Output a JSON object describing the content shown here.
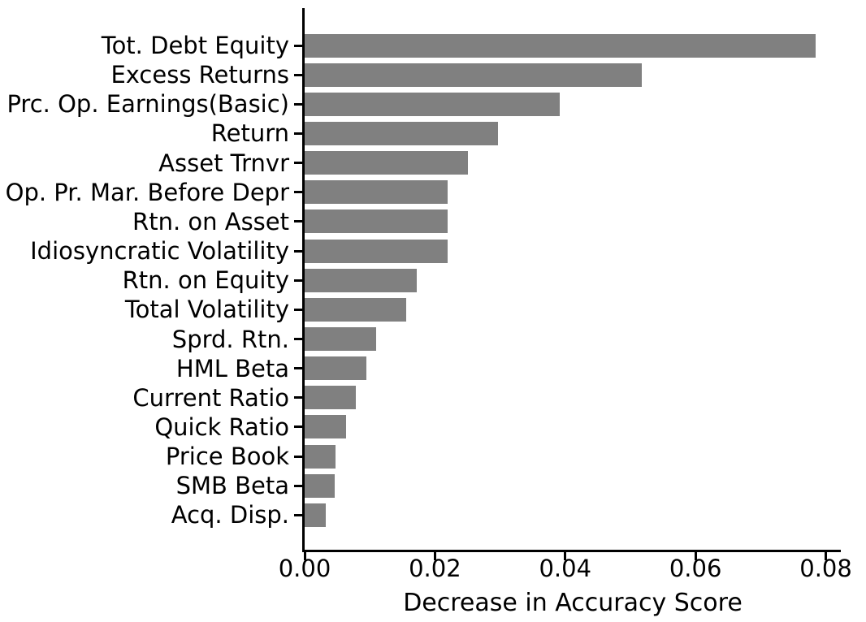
{
  "figure": {
    "background": "#ffffff",
    "text_color": "#000000",
    "spine_color": "#000000"
  },
  "chart_data": {
    "type": "bar",
    "orientation": "horizontal",
    "title": "",
    "xlabel": "Decrease in Accuracy Score",
    "ylabel": "",
    "categories": [
      "Tot. Debt Equity",
      "Excess Returns",
      "Prc. Op. Earnings(Basic)",
      "Return",
      "Asset Trnvr",
      "Op. Pr. Mar. Before Depr",
      "Rtn. on Asset",
      "Idiosyncratic Volatility",
      "Rtn. on Equity",
      "Total Volatility",
      "Sprd. Rtn.",
      "HML Beta",
      "Current Ratio",
      "Quick Ratio",
      "Price Book",
      "SMB Beta",
      "Acq. Disp."
    ],
    "values": [
      0.0784,
      0.0518,
      0.0392,
      0.0297,
      0.0251,
      0.022,
      0.022,
      0.0219,
      0.0172,
      0.0156,
      0.011,
      0.0095,
      0.0079,
      0.0063,
      0.0047,
      0.0046,
      0.0032
    ],
    "xticks": [
      0.0,
      0.02,
      0.04,
      0.06,
      0.08
    ],
    "xtick_labels": [
      "0.00",
      "0.02",
      "0.04",
      "0.06",
      "0.08"
    ],
    "xlim": [
      0,
      0.0823
    ],
    "bar_color": "#808080",
    "grid": false,
    "legend_position": "none"
  }
}
